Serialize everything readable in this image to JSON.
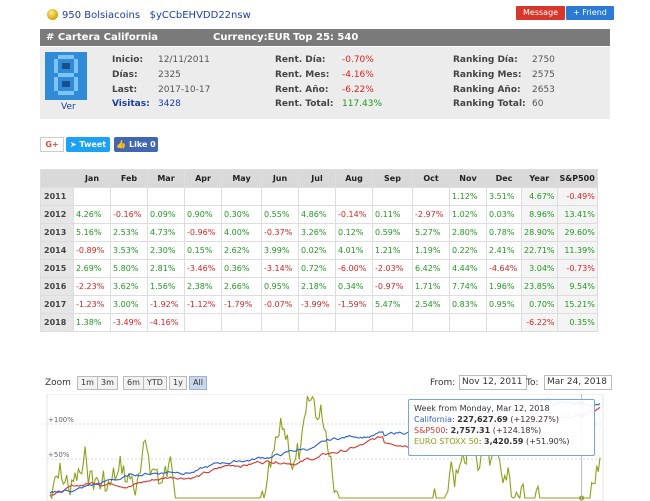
{
  "user": {
    "name": "950 Bolsiacoins",
    "id": "$yCCbEHVDD22nsw"
  },
  "buttons": {
    "message": "Message",
    "friend": "+ Friend"
  },
  "header": {
    "title": "# Cartera California",
    "currency": "Currency:EUR",
    "top": "Top 25: 540"
  },
  "avatar": {
    "link": "Ver"
  },
  "info": {
    "col1": [
      {
        "label": "Inicio:",
        "value": "12/11/2011"
      },
      {
        "label": "Días:",
        "value": "2325"
      },
      {
        "label": "Last:",
        "value": "2017-10-17"
      },
      {
        "label": "Visitas:",
        "value": "3428"
      }
    ],
    "col2": [
      {
        "label": "Rent. Día:",
        "value": "-0.70%"
      },
      {
        "label": "Rent. Mes:",
        "value": "-4.16%"
      },
      {
        "label": "Rent. Año:",
        "value": "-6.22%"
      },
      {
        "label": "Rent. Total:",
        "value": "117.43%"
      }
    ],
    "col3": [
      {
        "label": "Ranking Día:",
        "value": "2750"
      },
      {
        "label": "Ranking Mes:",
        "value": "2575"
      },
      {
        "label": "Ranking Año:",
        "value": "2653"
      },
      {
        "label": "Ranking Total:",
        "value": "60"
      }
    ]
  },
  "social": {
    "gplus": "G+",
    "tweet": "Tweet",
    "like": "Like 0"
  },
  "returns": {
    "headers": [
      "",
      "Jan",
      "Feb",
      "Mar",
      "Apr",
      "May",
      "Jun",
      "Jul",
      "Aug",
      "Sep",
      "Oct",
      "Nov",
      "Dec",
      "Year",
      "S&P500"
    ],
    "rows": [
      [
        "2011",
        "",
        "",
        "",
        "",
        "",
        "",
        "",
        "",
        "",
        "",
        "1.12%",
        "3.51%",
        "4.67%",
        "-0.49%"
      ],
      [
        "2012",
        "4.26%",
        "-0.16%",
        "0.09%",
        "0.90%",
        "0.30%",
        "0.55%",
        "4.86%",
        "-0.14%",
        "0.11%",
        "-2.97%",
        "1.02%",
        "0.03%",
        "8.96%",
        "13.41%"
      ],
      [
        "2013",
        "5.16%",
        "2.53%",
        "4.73%",
        "-0.96%",
        "4.00%",
        "-0.37%",
        "3.26%",
        "0.12%",
        "0.59%",
        "5.27%",
        "2.80%",
        "0.78%",
        "28.90%",
        "29.60%"
      ],
      [
        "2014",
        "-0.89%",
        "3.53%",
        "2.30%",
        "0.15%",
        "2.62%",
        "3.99%",
        "0.02%",
        "4.01%",
        "1.21%",
        "1.19%",
        "0.22%",
        "2.41%",
        "22.71%",
        "11.39%"
      ],
      [
        "2015",
        "2.69%",
        "5.80%",
        "2.81%",
        "-3.46%",
        "0.36%",
        "-3.14%",
        "0.72%",
        "-6.00%",
        "-2.03%",
        "6.42%",
        "4.44%",
        "-4.64%",
        "3.04%",
        "-0.73%"
      ],
      [
        "2016",
        "-2.23%",
        "3.62%",
        "1.56%",
        "2.38%",
        "2.66%",
        "0.95%",
        "2.18%",
        "0.34%",
        "-0.97%",
        "1.71%",
        "7.74%",
        "1.96%",
        "23.85%",
        "9.54%"
      ],
      [
        "2017",
        "-1.23%",
        "3.00%",
        "-1.92%",
        "-1.12%",
        "-1.79%",
        "-0.07%",
        "-3.99%",
        "-1.59%",
        "5.47%",
        "2.54%",
        "0.83%",
        "0.95%",
        "0.70%",
        "15.21%"
      ],
      [
        "2018",
        "1.38%",
        "-3.49%",
        "-4.16%",
        "",
        "",
        "",
        "",
        "",
        "",
        "",
        "",
        "",
        "-6.22%",
        "0.35%"
      ]
    ]
  },
  "chart": {
    "zoom_label": "Zoom",
    "zoom_buttons": [
      "1m",
      "3m",
      "6m",
      "YTD",
      "1y",
      "All"
    ],
    "active_zoom": "All",
    "from_label": "From:",
    "from_value": "Nov 12, 2011",
    "to_label": "To:",
    "to_value": "Mar 24, 2018",
    "y_ticks": [
      "+100%",
      "+50%"
    ],
    "tooltip": {
      "title": "Week from Monday, Mar 12, 2018",
      "items": [
        {
          "name": "California",
          "value": "227,627.69",
          "change": "(+129.27%)",
          "color": "#2b5fd0"
        },
        {
          "name": "S&P500",
          "value": "2,757.31",
          "change": "(+124.18%)",
          "color": "#d9362b"
        },
        {
          "name": "EURO STOXX 50",
          "value": "3,420.59",
          "change": "(+51.90%)",
          "color": "#8aa21a"
        }
      ]
    },
    "series_colors": {
      "california": "#2b5fd0",
      "sp500": "#d9362b",
      "eurostoxx": "#8aa21a"
    }
  }
}
